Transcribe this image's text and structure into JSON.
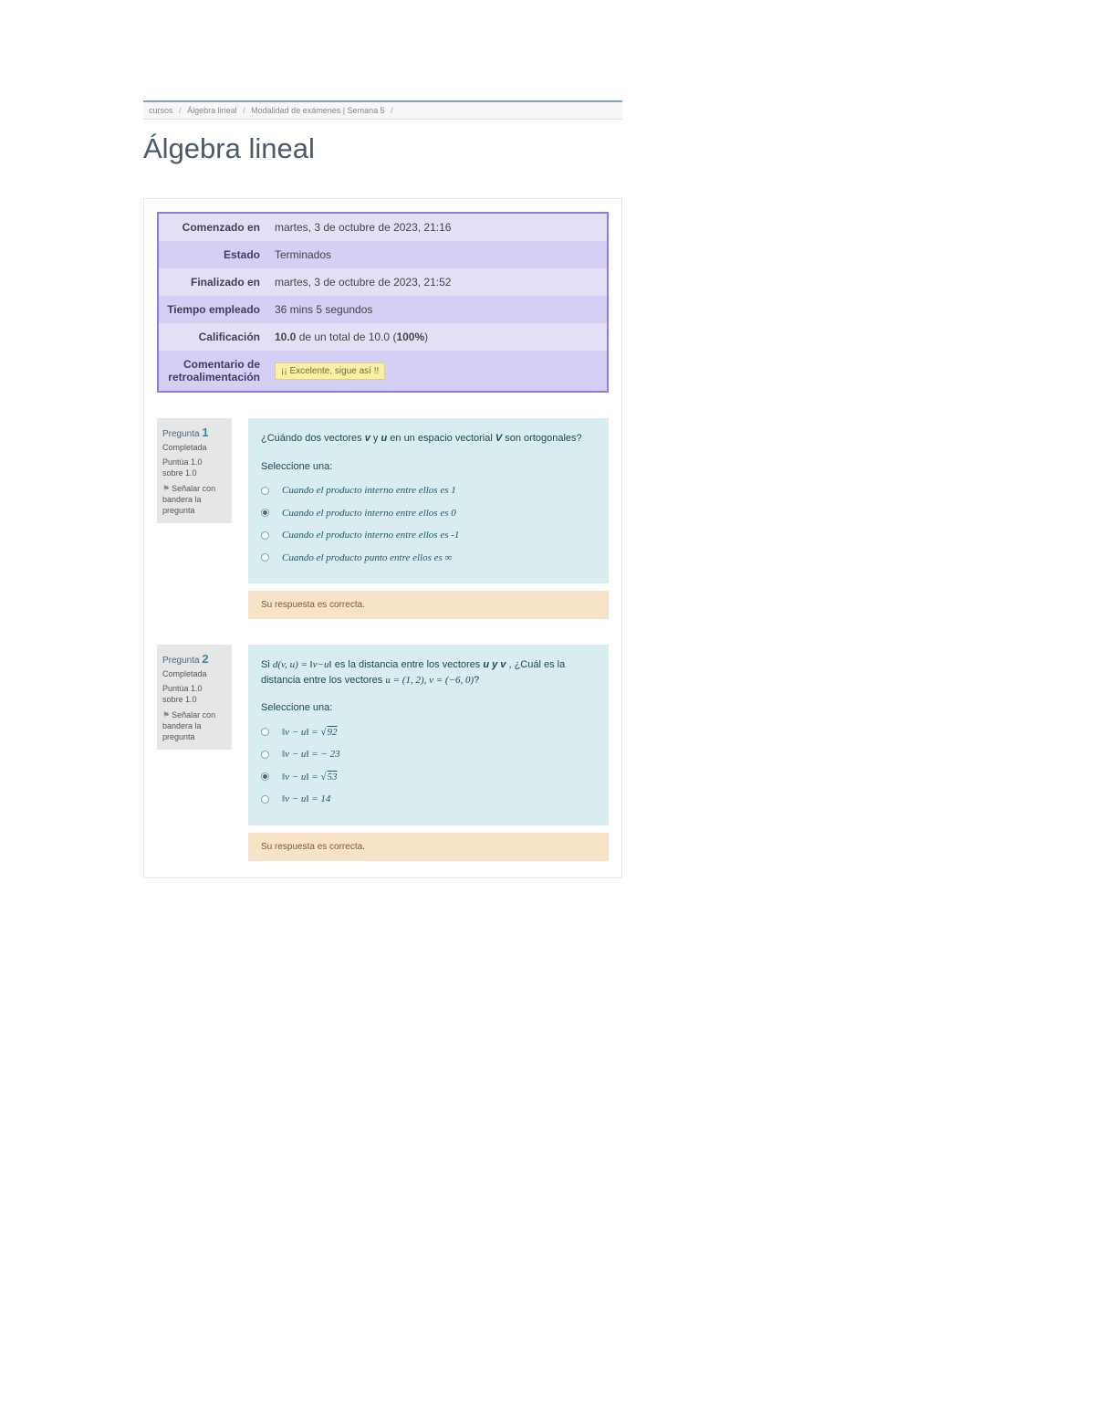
{
  "breadcrumb": {
    "items": [
      {
        "label": "cursos"
      },
      {
        "label": "Álgebra lineal"
      },
      {
        "label": "Modalidad de exámenes | Semana 5"
      }
    ],
    "sep": "/"
  },
  "course_title": "Álgebra lineal",
  "summary": {
    "rows": [
      {
        "label": "Comenzado en",
        "value": "martes, 3 de octubre de 2023, 21:16"
      },
      {
        "label": "Estado",
        "value": "Terminados"
      },
      {
        "label": "Finalizado en",
        "value": "martes, 3 de octubre de 2023, 21:52"
      },
      {
        "label": "Tiempo empleado",
        "value": "36 mins 5 segundos"
      },
      {
        "label": "Calificación",
        "value_strong": "10.0",
        "value_rest": " de un total de 10.0 (",
        "value_pct": "100%",
        "value_close": ")"
      },
      {
        "label": "Comentario de retroalimentación",
        "feedback": "¡¡ Excelente, sigue así !!"
      }
    ],
    "colors": {
      "row_a": "#e3dff7",
      "row_b": "#d5cef5",
      "border": "#8c7de0"
    }
  },
  "questions": [
    {
      "number": "1",
      "head": "Pregunta",
      "status": "Completada",
      "score_line1": "Puntúa 1.0",
      "score_line2": "sobre 1.0",
      "flag": "Señalar con bandera la pregunta",
      "prompt_pre": "¿Cuándo dos vectores ",
      "prompt_v": "v",
      "prompt_mid1": " y ",
      "prompt_u": "u",
      "prompt_mid2": " en un espacio vectorial ",
      "prompt_V": "V",
      "prompt_post": " son ortogonales?",
      "select_hdr": "Seleccione una:",
      "options": [
        {
          "text": "Cuando el producto interno entre ellos es 1",
          "checked": false
        },
        {
          "text": "Cuando el producto interno entre ellos es 0",
          "checked": true
        },
        {
          "text": "Cuando el producto interno entre ellos es -1",
          "checked": false
        },
        {
          "text": "Cuando el producto punto entre ellos es ∞",
          "checked": false
        }
      ],
      "feedback": "Su respuesta es correcta."
    },
    {
      "number": "2",
      "head": "Pregunta",
      "status": "Completada",
      "score_line1": "Puntúa 1.0",
      "score_line2": "sobre 1.0",
      "flag": "Señalar con bandera la pregunta",
      "prompt2_a": "Si  ",
      "prompt2_d": "d(v, u) = ‖v−u‖",
      "prompt2_b": " es la distancia entre los vectores ",
      "prompt2_uyv": "u y v",
      "prompt2_c": " , ¿Cuál es la distancia entre los vectores ",
      "prompt2_vals": "u = (1, 2), v = (−6, 0)",
      "prompt2_d2": "?",
      "select_hdr": "Seleccione una:",
      "options": [
        {
          "html": "‖v − u‖ = √92",
          "sqrt": "92",
          "prefix": "‖v − u‖ = ",
          "checked": false
        },
        {
          "text": "‖v − u‖ = − 23",
          "checked": false
        },
        {
          "html": "‖v − u‖ = √53",
          "sqrt": "53",
          "prefix": "‖v − u‖ = ",
          "checked": true
        },
        {
          "text": "‖v − u‖ = 14",
          "checked": false
        }
      ],
      "feedback": "Su respuesta es correcta."
    }
  ],
  "colors": {
    "q_bg": "#d9ecf0",
    "q_side_bg": "#e6e6e6",
    "feedback_bg": "#f7e3c8",
    "accent": "#2a8aa5"
  }
}
